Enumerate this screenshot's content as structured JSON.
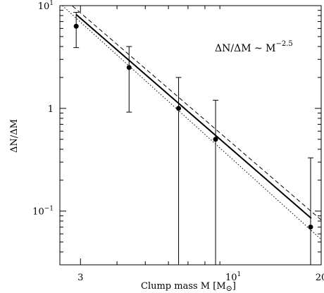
{
  "chart_data": {
    "type": "scatter",
    "title": "",
    "xlabel": "Clump mass M [M",
    "xlabel_sub": "⊙",
    "xlabel_end": "]",
    "ylabel": "ΔN/ΔM",
    "xscale": "log",
    "yscale": "log",
    "xlim": [
      2.55,
      20
    ],
    "ylim": [
      0.03,
      10
    ],
    "x_ticks": [
      {
        "value": 3,
        "label": "3"
      },
      {
        "value": 10,
        "label": "10",
        "sup": "1",
        "base": "10"
      },
      {
        "value": 20,
        "label": "20"
      }
    ],
    "y_ticks": [
      {
        "value": 10,
        "base": "10",
        "sup": "1"
      },
      {
        "value": 1,
        "label": "1"
      },
      {
        "value": 0.1,
        "base": "10",
        "sup": "−1"
      }
    ],
    "annotation": {
      "text": "ΔN/ΔM ~ M",
      "sup": "−2.5"
    },
    "points": [
      {
        "x": 2.9,
        "y": 6.3,
        "y_low": 3.9,
        "y_high": 8.6
      },
      {
        "x": 4.4,
        "y": 2.5,
        "y_low": 0.92,
        "y_high": 4.0
      },
      {
        "x": 6.5,
        "y": 1.0,
        "y_low": 0.03,
        "y_high": 2.0
      },
      {
        "x": 8.7,
        "y": 0.5,
        "y_low": 0.03,
        "y_high": 1.2
      },
      {
        "x": 18.4,
        "y": 0.07,
        "y_low": 0.03,
        "y_high": 0.33
      }
    ],
    "series": [
      {
        "style": "solid",
        "values": [
          [
            2.9,
            8.2
          ],
          [
            18.5,
            0.085
          ]
        ]
      },
      {
        "style": "dashed",
        "values": [
          [
            2.7,
            11.0
          ],
          [
            20,
            0.082
          ]
        ]
      },
      {
        "style": "dotted",
        "values": [
          [
            2.6,
            10.0
          ],
          [
            20,
            0.053
          ]
        ]
      }
    ],
    "grid": false,
    "legend": "none"
  }
}
